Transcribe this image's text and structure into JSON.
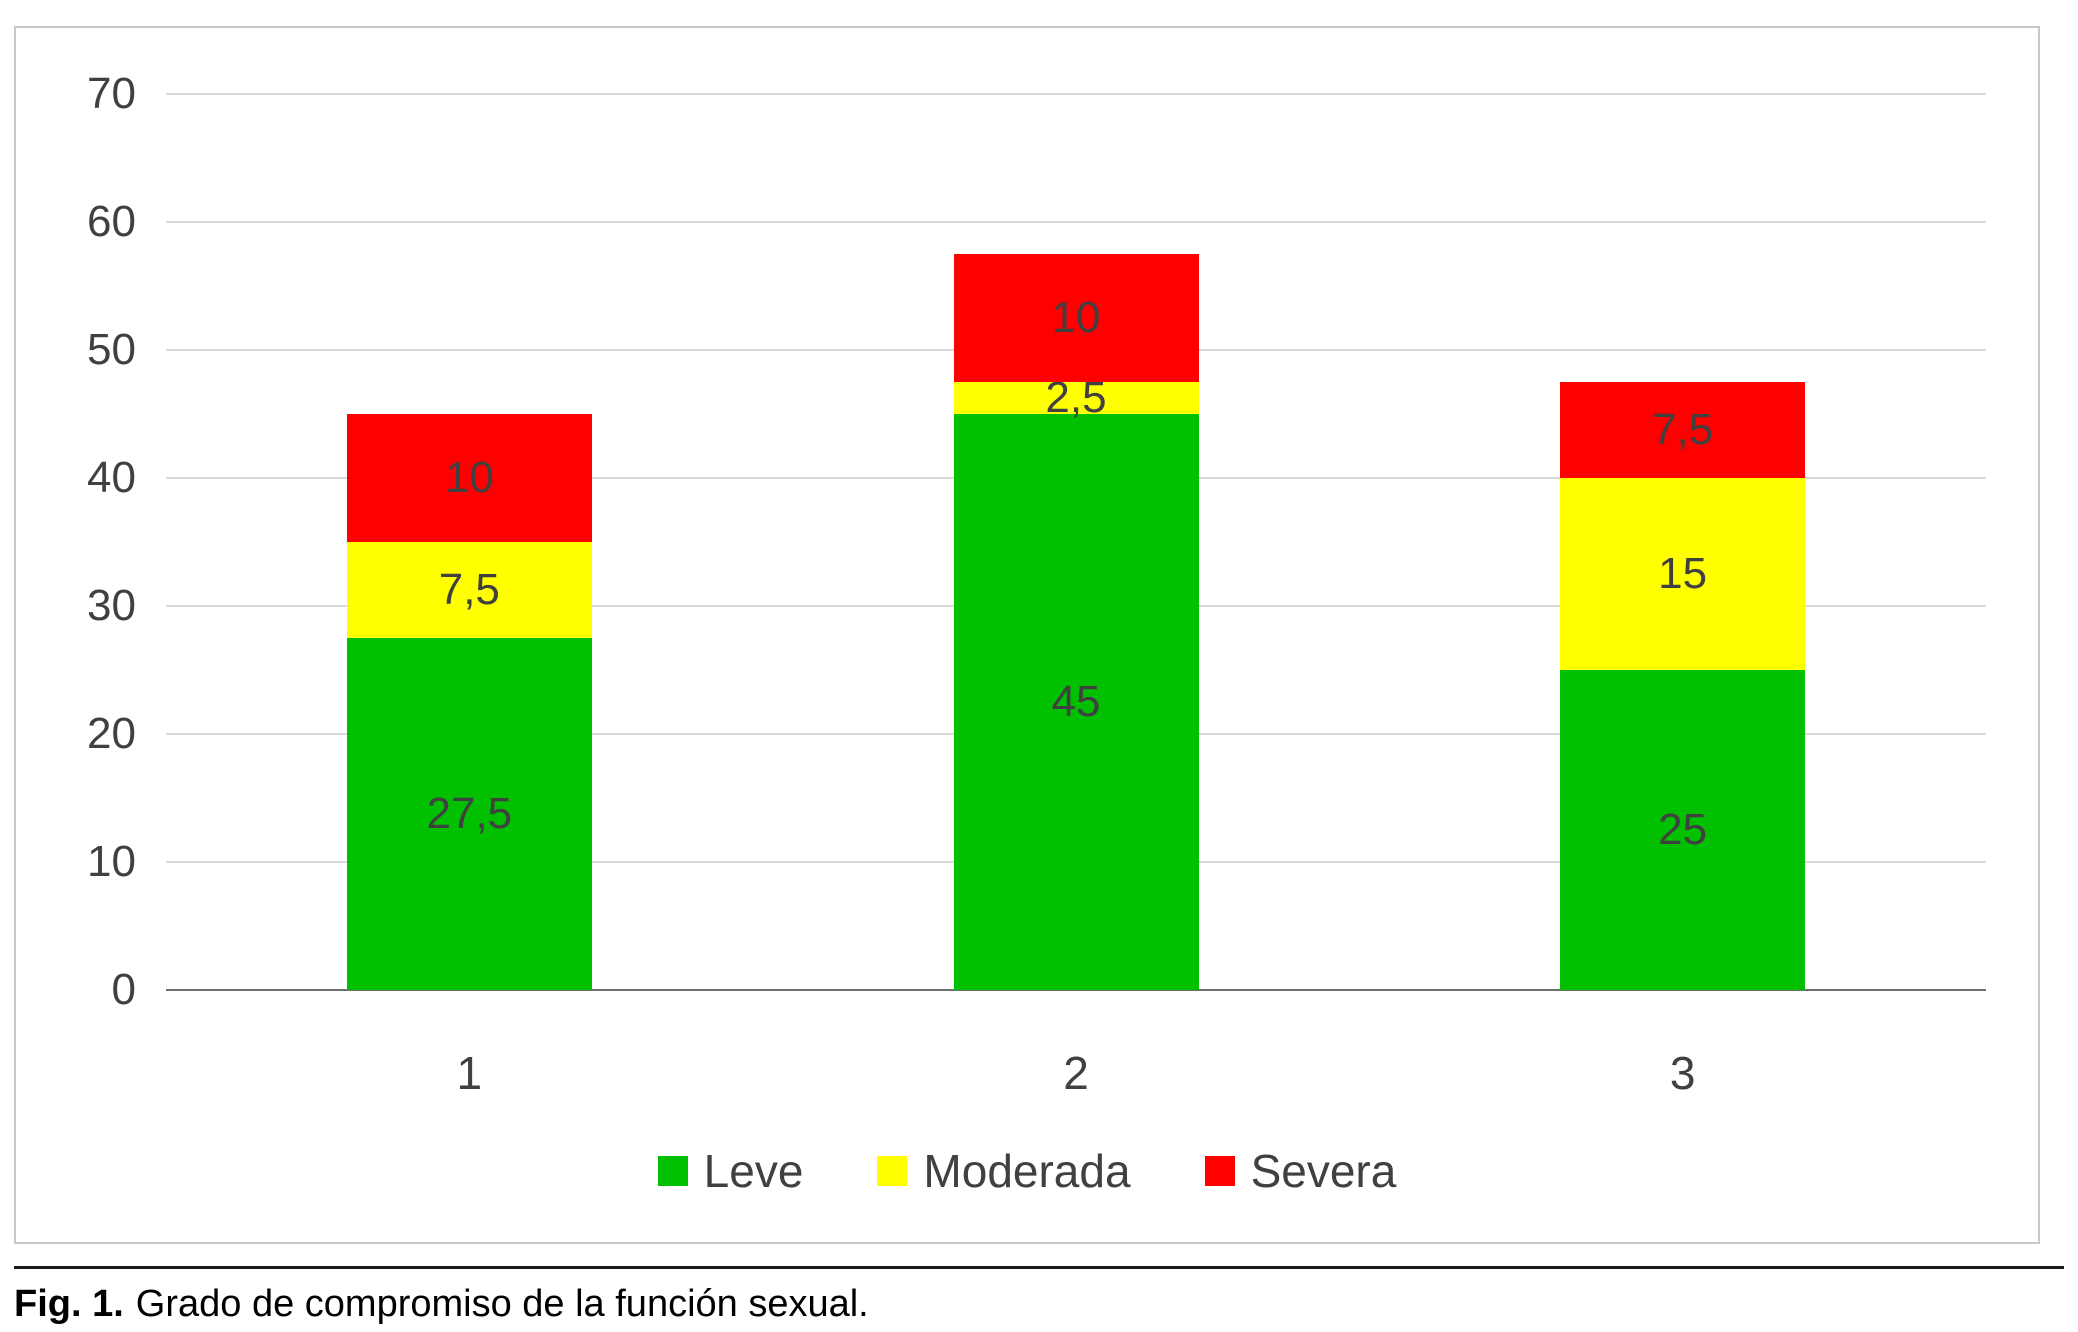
{
  "figure": {
    "caption_prefix": "Fig. 1.",
    "caption_text": "Grado de compromiso de la función sexual."
  },
  "chart_data": {
    "type": "bar",
    "stacked": true,
    "title": "",
    "xlabel": "",
    "ylabel": "",
    "categories": [
      "1",
      "2",
      "3"
    ],
    "series": [
      {
        "name": "Leve",
        "color": "#00c000",
        "values": [
          27.5,
          45,
          25
        ],
        "labels": [
          "27,5",
          "45",
          "25"
        ]
      },
      {
        "name": "Moderada",
        "color": "#ffff00",
        "values": [
          7.5,
          2.5,
          15
        ],
        "labels": [
          "7,5",
          "2,5",
          "15"
        ]
      },
      {
        "name": "Severa",
        "color": "#ff0000",
        "values": [
          10,
          10,
          7.5
        ],
        "labels": [
          "10",
          "10",
          "7,5"
        ]
      }
    ],
    "ylim": [
      0,
      70
    ],
    "ytick_step": 10,
    "grid": true,
    "legend_position": "bottom",
    "axis_color": "#404040",
    "label_color": "#404040"
  }
}
